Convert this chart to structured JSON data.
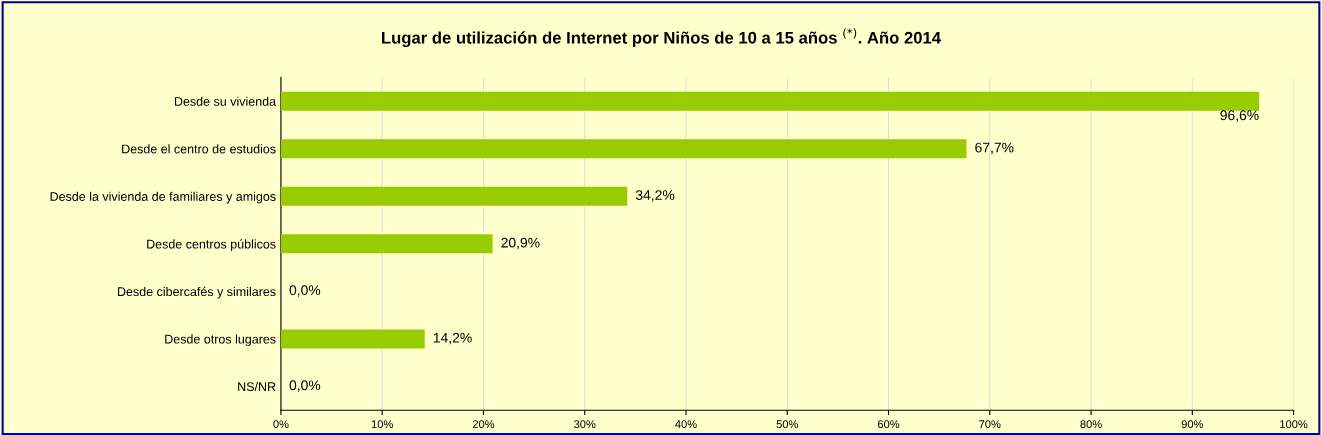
{
  "chart_data": {
    "type": "bar",
    "orientation": "horizontal",
    "title": "Lugar de utilización de Internet por Niños de 10 a 15 años $^{(*)}$. Año 2014",
    "categories": [
      "Desde su vivienda",
      "Desde el centro de estudios",
      "Desde la vivienda de familiares y amigos",
      "Desde centros públicos",
      "Desde cibercafés y similares",
      "Desde otros lugares",
      "NS/NR"
    ],
    "values": [
      96.6,
      67.7,
      34.2,
      20.9,
      0.0,
      14.2,
      0.0
    ],
    "value_labels": [
      "96,6%",
      "67,7%",
      "34,2%",
      "20,9%",
      "0,0%",
      "14,2%",
      "0,0%"
    ],
    "color": "#99cc00",
    "xlim": [
      0,
      100
    ],
    "xticks": [
      {
        "value": 0,
        "label": "0%"
      },
      {
        "value": 10,
        "label": "10%"
      },
      {
        "value": 20,
        "label": "20%"
      },
      {
        "value": 30,
        "label": "30%"
      },
      {
        "value": 40,
        "label": "40%"
      },
      {
        "value": 50,
        "label": "50%"
      },
      {
        "value": 60,
        "label": "60%"
      },
      {
        "value": 70,
        "label": "70%"
      },
      {
        "value": 80,
        "label": "80%"
      },
      {
        "value": 90,
        "label": "90%"
      },
      {
        "value": 100,
        "label": "100%"
      }
    ],
    "grid": "x"
  }
}
